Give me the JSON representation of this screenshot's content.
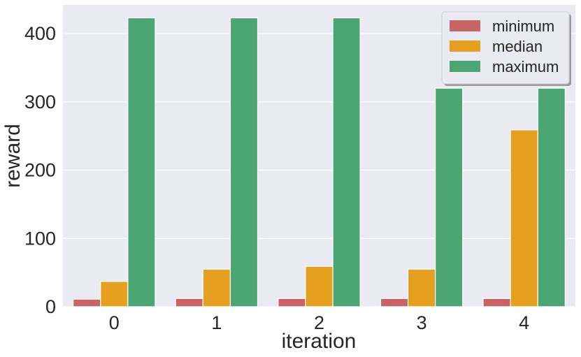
{
  "chart_data": {
    "type": "bar",
    "title": "",
    "xlabel": "iteration",
    "ylabel": "reward",
    "categories": [
      "0",
      "1",
      "2",
      "3",
      "4"
    ],
    "series": [
      {
        "name": "minimum",
        "values": [
          11,
          12,
          12,
          12,
          12
        ]
      },
      {
        "name": "median",
        "values": [
          37,
          55,
          59,
          55,
          259
        ]
      },
      {
        "name": "maximum",
        "values": [
          423,
          423,
          423,
          320,
          320
        ]
      }
    ],
    "ylim": [
      0,
      442
    ],
    "yticks": [
      "0",
      "100",
      "200",
      "300",
      "400"
    ],
    "grid": true,
    "legend_position": "top-right",
    "colors": {
      "minimum": "#c86464",
      "median": "#e6a020",
      "maximum": "#4ca674",
      "background": "#eaeaf2",
      "grid": "#ffffff"
    }
  }
}
